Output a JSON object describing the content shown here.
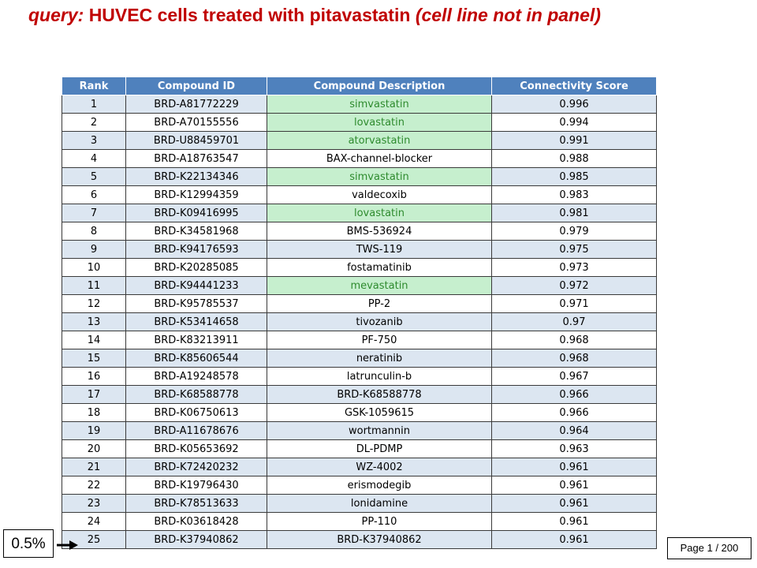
{
  "title": {
    "prefix": "query:",
    "main": "HUVEC cells treated with pitavastatin",
    "suffix": "(cell line not in panel)"
  },
  "table": {
    "headers": [
      "Rank",
      "Compound ID",
      "Compound Description",
      "Connectivity Score"
    ],
    "rows": [
      {
        "rank": "1",
        "id": "BRD-A81772229",
        "desc": "simvastatin",
        "score": "0.996",
        "statin": true
      },
      {
        "rank": "2",
        "id": "BRD-A70155556",
        "desc": "lovastatin",
        "score": "0.994",
        "statin": true
      },
      {
        "rank": "3",
        "id": "BRD-U88459701",
        "desc": "atorvastatin",
        "score": "0.991",
        "statin": true
      },
      {
        "rank": "4",
        "id": "BRD-A18763547",
        "desc": "BAX-channel-blocker",
        "score": "0.988",
        "statin": false
      },
      {
        "rank": "5",
        "id": "BRD-K22134346",
        "desc": "simvastatin",
        "score": "0.985",
        "statin": true
      },
      {
        "rank": "6",
        "id": "BRD-K12994359",
        "desc": "valdecoxib",
        "score": "0.983",
        "statin": false
      },
      {
        "rank": "7",
        "id": "BRD-K09416995",
        "desc": "lovastatin",
        "score": "0.981",
        "statin": true
      },
      {
        "rank": "8",
        "id": "BRD-K34581968",
        "desc": "BMS-536924",
        "score": "0.979",
        "statin": false
      },
      {
        "rank": "9",
        "id": "BRD-K94176593",
        "desc": "TWS-119",
        "score": "0.975",
        "statin": false
      },
      {
        "rank": "10",
        "id": "BRD-K20285085",
        "desc": "fostamatinib",
        "score": "0.973",
        "statin": false
      },
      {
        "rank": "11",
        "id": "BRD-K94441233",
        "desc": "mevastatin",
        "score": "0.972",
        "statin": true
      },
      {
        "rank": "12",
        "id": "BRD-K95785537",
        "desc": "PP-2",
        "score": "0.971",
        "statin": false
      },
      {
        "rank": "13",
        "id": "BRD-K53414658",
        "desc": "tivozanib",
        "score": "0.97",
        "statin": false
      },
      {
        "rank": "14",
        "id": "BRD-K83213911",
        "desc": "PF-750",
        "score": "0.968",
        "statin": false
      },
      {
        "rank": "15",
        "id": "BRD-K85606544",
        "desc": "neratinib",
        "score": "0.968",
        "statin": false
      },
      {
        "rank": "16",
        "id": "BRD-A19248578",
        "desc": "latrunculin-b",
        "score": "0.967",
        "statin": false
      },
      {
        "rank": "17",
        "id": "BRD-K68588778",
        "desc": "BRD-K68588778",
        "score": "0.966",
        "statin": false
      },
      {
        "rank": "18",
        "id": "BRD-K06750613",
        "desc": "GSK-1059615",
        "score": "0.966",
        "statin": false
      },
      {
        "rank": "19",
        "id": "BRD-A11678676",
        "desc": "wortmannin",
        "score": "0.964",
        "statin": false
      },
      {
        "rank": "20",
        "id": "BRD-K05653692",
        "desc": "DL-PDMP",
        "score": "0.963",
        "statin": false
      },
      {
        "rank": "21",
        "id": "BRD-K72420232",
        "desc": "WZ-4002",
        "score": "0.961",
        "statin": false
      },
      {
        "rank": "22",
        "id": "BRD-K19796430",
        "desc": "erismodegib",
        "score": "0.961",
        "statin": false
      },
      {
        "rank": "23",
        "id": "BRD-K78513633",
        "desc": "lonidamine",
        "score": "0.961",
        "statin": false
      },
      {
        "rank": "24",
        "id": "BRD-K03618428",
        "desc": "PP-110",
        "score": "0.961",
        "statin": false
      },
      {
        "rank": "25",
        "id": "BRD-K37940862",
        "desc": "BRD-K37940862",
        "score": "0.961",
        "statin": false
      }
    ]
  },
  "percent_label": "0.5%",
  "page_indicator": "Page 1 / 200",
  "colors": {
    "title": "#c00000",
    "header_bg": "#4f81bd",
    "row_alt": "#dce6f1",
    "statin_bg": "#c6efce",
    "statin_text": "#2e8b2e"
  },
  "icons": {
    "pointer": "arrow-right-icon"
  }
}
